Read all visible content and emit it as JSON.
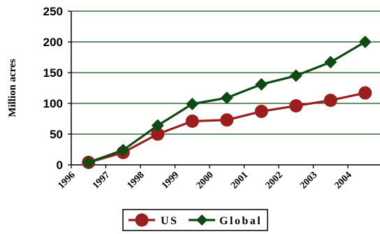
{
  "chart_data": {
    "type": "line",
    "categories": [
      "1996",
      "1997",
      "1998",
      "1999",
      "2000",
      "2001",
      "2002",
      "2003",
      "2004"
    ],
    "series": [
      {
        "name": "US",
        "color": "#9a1e1e",
        "marker": "circle",
        "values": [
          4,
          20,
          50,
          71,
          73,
          87,
          96,
          105,
          117
        ]
      },
      {
        "name": "Global",
        "color": "#0f4a12",
        "marker": "diamond",
        "values": [
          4,
          24,
          64,
          99,
          109,
          131,
          145,
          167,
          200
        ]
      }
    ],
    "title": "",
    "xlabel": "",
    "ylabel": "Million acres",
    "ylim": [
      0,
      250
    ],
    "yticks": [
      "0",
      "50",
      "100",
      "150",
      "200",
      "250"
    ],
    "grid": "horizontal",
    "gridline_color": "#0f4a12",
    "legend": {
      "position": "bottom",
      "entries": [
        "US",
        "Global"
      ]
    }
  }
}
